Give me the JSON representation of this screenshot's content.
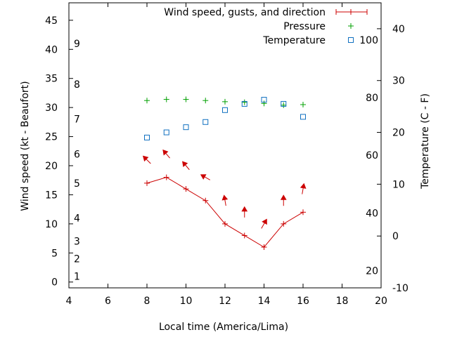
{
  "chart_data": {
    "type": "line",
    "xlabel": "Local time (America/Lima)",
    "ylabel": "Wind speed (kt - Beaufort)",
    "y2label": "Temperature (C - F)",
    "xlim": [
      4,
      20
    ],
    "ylim": [
      -1,
      48
    ],
    "y2lim": [
      -10,
      45
    ],
    "x_ticks": [
      "4",
      "6",
      "8",
      "10",
      "12",
      "14",
      "16",
      "18",
      "20"
    ],
    "y_ticks": [
      "0",
      "5",
      "10",
      "15",
      "20",
      "25",
      "30",
      "35",
      "40",
      "45"
    ],
    "y2_ticks": [
      "-10",
      "0",
      "10",
      "20",
      "30",
      "40"
    ],
    "beaufort_labels": [
      {
        "text": "1",
        "at": 1
      },
      {
        "text": "2",
        "at": 4
      },
      {
        "text": "3",
        "at": 7
      },
      {
        "text": "4",
        "at": 11
      },
      {
        "text": "5",
        "at": 17
      },
      {
        "text": "6",
        "at": 22
      },
      {
        "text": "7",
        "at": 28
      },
      {
        "text": "8",
        "at": 34
      },
      {
        "text": "9",
        "at": 41
      }
    ],
    "fahrenheit_labels": [
      {
        "text": "20",
        "at": -6.7
      },
      {
        "text": "40",
        "at": 4.4
      },
      {
        "text": "60",
        "at": 15.6
      },
      {
        "text": "80",
        "at": 26.7
      },
      {
        "text": "100",
        "at": 37.8
      }
    ],
    "legend_position": "top-right",
    "series": [
      {
        "name": "Wind speed, gusts, and direction",
        "axis": "y",
        "color": "#cc0000",
        "x": [
          8,
          9,
          10,
          11,
          12,
          13,
          14,
          15,
          16
        ],
        "values": [
          17,
          18,
          16,
          14,
          10,
          8,
          6,
          10,
          12
        ]
      },
      {
        "name": "Pressure",
        "axis": "y",
        "color": "#00a000",
        "x": [
          8,
          9,
          10,
          11,
          12,
          13,
          14,
          15,
          16
        ],
        "values": [
          31.2,
          31.4,
          31.4,
          31.2,
          31,
          30.9,
          30.7,
          30.4,
          30.5
        ]
      },
      {
        "name": "Temperature",
        "axis": "y2",
        "color": "#1070c0",
        "x": [
          8,
          9,
          10,
          11,
          12,
          13,
          14,
          15,
          16
        ],
        "values": [
          19,
          20,
          21,
          22,
          24.3,
          25.5,
          26.3,
          25.5,
          23
        ]
      }
    ],
    "wind_direction_arrows": {
      "color": "#cc0000",
      "x": [
        8,
        9,
        10,
        11,
        12,
        13,
        14,
        15,
        16
      ],
      "y": [
        21,
        22,
        20,
        18,
        14,
        12,
        10,
        14,
        16
      ],
      "direction_deg": [
        315,
        320,
        320,
        300,
        350,
        0,
        30,
        0,
        10
      ]
    }
  }
}
